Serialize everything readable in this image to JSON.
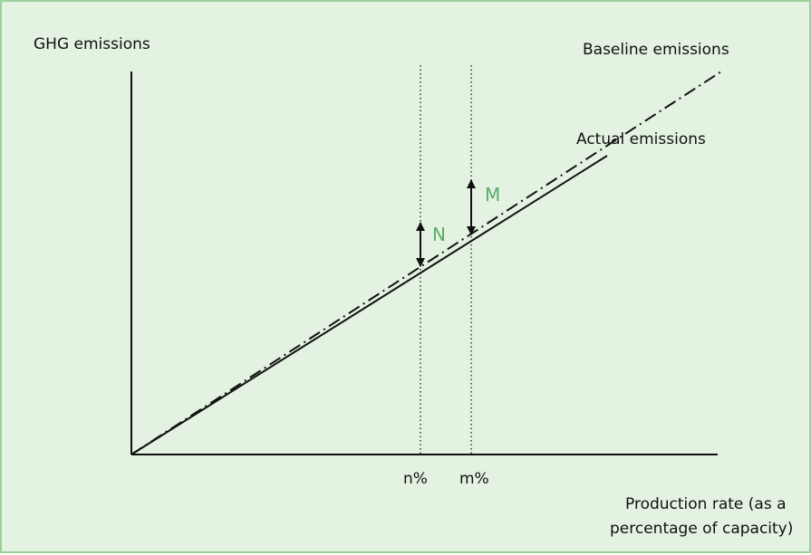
{
  "diagram": {
    "y_axis_label": "GHG emissions",
    "x_axis_label_line1": "Production rate (as a",
    "x_axis_label_line2": "percentage of capacity)",
    "baseline_label": "Baseline emissions",
    "actual_label": "Actual emissions",
    "tick_n": "n%",
    "tick_m": "m%",
    "gap_n_label": "N",
    "gap_m_label": "M",
    "colors": {
      "background": "#e3f2e1",
      "border": "#9ccf9a",
      "marker_text": "#5aab67",
      "lines": "#111111"
    }
  }
}
